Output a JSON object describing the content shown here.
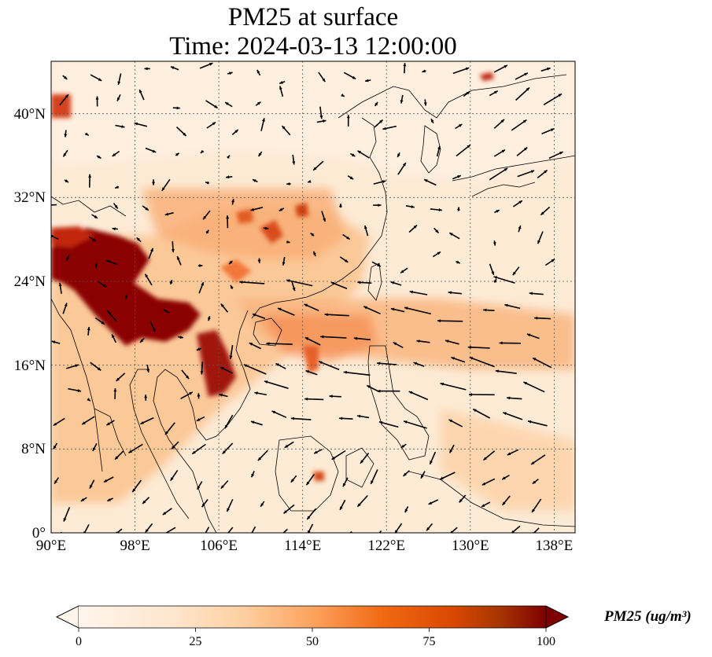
{
  "title": "PM25 at surface",
  "subtitle": "Time: 2024-03-13 12:00:00",
  "map": {
    "lon_range": [
      90,
      140
    ],
    "lat_range": [
      0,
      45
    ],
    "lon_ticks": [
      "90°E",
      "98°E",
      "106°E",
      "114°E",
      "122°E",
      "130°E",
      "138°E"
    ],
    "lat_ticks": [
      "0°",
      "8°N",
      "16°N",
      "24°N",
      "32°N",
      "40°N"
    ],
    "gridlines": "dotted",
    "field": "PM25",
    "overlay": "wind vectors (arrows)"
  },
  "colorbar": {
    "label": "PM25 (ug/m³)",
    "ticks": [
      "0",
      "25",
      "50",
      "75",
      "100"
    ],
    "min": 0,
    "max": 100,
    "extend": "both",
    "colors": [
      "#fff5eb",
      "#fdd9b4",
      "#fda35f",
      "#e5531a",
      "#b01e05",
      "#7f0000"
    ]
  }
}
